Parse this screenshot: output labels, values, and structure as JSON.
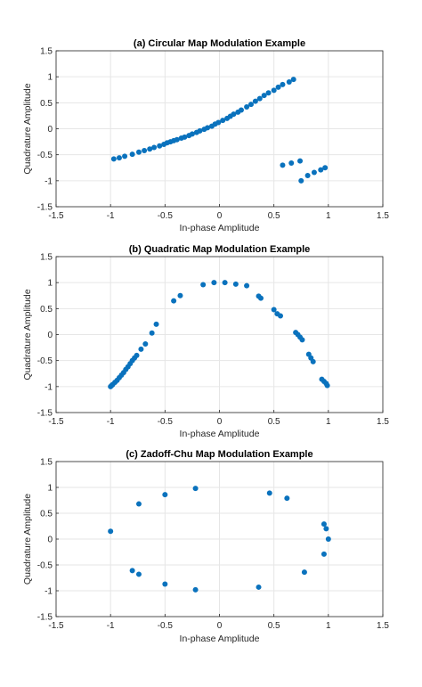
{
  "chart_data": [
    {
      "type": "scatter",
      "title": "(a) Circular Map Modulation Example",
      "xlabel": "In-phase Amplitude",
      "ylabel": "Quadrature Amplitude",
      "xlim": [
        -1.5,
        1.5
      ],
      "ylim": [
        -1.5,
        1.5
      ],
      "xticks": [
        -1.5,
        -1,
        -0.5,
        0,
        0.5,
        1,
        1.5
      ],
      "yticks": [
        -1.5,
        -1,
        -0.5,
        0,
        0.5,
        1,
        1.5
      ],
      "xticklabels": [
        "-1.5",
        "-1",
        "-0.5",
        "0",
        "0.5",
        "1",
        "1.5"
      ],
      "yticklabels": [
        "-1.5",
        "-1",
        "-0.5",
        "0",
        "0.5",
        "1",
        "1.5"
      ],
      "grid": true,
      "color": "#0a72bd",
      "x": [
        -0.97,
        -0.92,
        -0.87,
        -0.8,
        -0.74,
        -0.69,
        -0.64,
        -0.6,
        -0.55,
        -0.51,
        -0.48,
        -0.45,
        -0.42,
        -0.39,
        -0.35,
        -0.32,
        -0.28,
        -0.25,
        -0.21,
        -0.18,
        -0.14,
        -0.11,
        -0.07,
        -0.04,
        -0.01,
        0.03,
        0.07,
        0.1,
        0.13,
        0.17,
        0.2,
        0.25,
        0.29,
        0.33,
        0.37,
        0.41,
        0.45,
        0.5,
        0.54,
        0.58,
        0.64,
        0.68,
        0.75,
        0.81,
        0.87,
        0.93,
        0.97
      ],
      "y": [
        -0.58,
        -0.56,
        -0.53,
        -0.49,
        -0.45,
        -0.42,
        -0.39,
        -0.36,
        -0.33,
        -0.3,
        -0.27,
        -0.25,
        -0.23,
        -0.21,
        -0.18,
        -0.16,
        -0.13,
        -0.1,
        -0.07,
        -0.04,
        -0.01,
        0.02,
        0.05,
        0.09,
        0.12,
        0.16,
        0.2,
        0.24,
        0.28,
        0.32,
        0.36,
        0.42,
        0.47,
        0.53,
        0.58,
        0.64,
        0.69,
        0.74,
        0.8,
        0.85,
        0.9,
        0.95,
        -1.0,
        -0.9,
        -0.84,
        -0.79,
        -0.75
      ],
      "x_extra": [
        0.58,
        0.66,
        0.74
      ],
      "y_extra": [
        -0.7,
        -0.66,
        -0.62
      ]
    },
    {
      "type": "scatter",
      "title": "(b) Quadratic Map Modulation Example",
      "xlabel": "In-phase Amplitude",
      "ylabel": "Quadrature Amplitude",
      "xlim": [
        -1.5,
        1.5
      ],
      "ylim": [
        -1.5,
        1.5
      ],
      "xticks": [
        -1.5,
        -1,
        -0.5,
        0,
        0.5,
        1,
        1.5
      ],
      "yticks": [
        -1.5,
        -1,
        -0.5,
        0,
        0.5,
        1,
        1.5
      ],
      "xticklabels": [
        "-1.5",
        "-1",
        "-0.5",
        "0",
        "0.5",
        "1",
        "1.5"
      ],
      "yticklabels": [
        "-1.5",
        "-1",
        "-0.5",
        "0",
        "0.5",
        "1",
        "1.5"
      ],
      "grid": true,
      "color": "#0a72bd",
      "x": [
        -1.0,
        -0.99,
        -0.98,
        -0.96,
        -0.94,
        -0.92,
        -0.9,
        -0.88,
        -0.86,
        -0.84,
        -0.82,
        -0.8,
        -0.78,
        -0.76,
        -0.72,
        -0.68,
        -0.62,
        -0.58,
        -0.42,
        -0.36,
        -0.15,
        -0.05,
        0.05,
        0.15,
        0.25,
        0.36,
        0.38,
        0.5,
        0.53,
        0.56,
        0.7,
        0.72,
        0.74,
        0.76,
        0.82,
        0.84,
        0.86,
        0.94,
        0.96,
        0.98,
        0.99
      ],
      "y": [
        -1.0,
        -0.98,
        -0.96,
        -0.92,
        -0.88,
        -0.83,
        -0.78,
        -0.73,
        -0.67,
        -0.62,
        -0.56,
        -0.5,
        -0.45,
        -0.4,
        -0.28,
        -0.18,
        0.03,
        0.2,
        0.65,
        0.75,
        0.96,
        1.0,
        1.0,
        0.97,
        0.94,
        0.74,
        0.7,
        0.48,
        0.4,
        0.36,
        0.04,
        0.0,
        -0.05,
        -0.1,
        -0.38,
        -0.45,
        -0.52,
        -0.86,
        -0.9,
        -0.94,
        -0.98
      ]
    },
    {
      "type": "scatter",
      "title": "(c) Zadoff-Chu Map Modulation Example",
      "xlabel": "In-phase Amplitude",
      "ylabel": "Quadrature Amplitude",
      "xlim": [
        -1.5,
        1.5
      ],
      "ylim": [
        -1.5,
        1.5
      ],
      "xticks": [
        -1.5,
        -1,
        -0.5,
        0,
        0.5,
        1,
        1.5
      ],
      "yticks": [
        -1.5,
        -1,
        -0.5,
        0,
        0.5,
        1,
        1.5
      ],
      "xticklabels": [
        "-1.5",
        "-1",
        "-0.5",
        "0",
        "0.5",
        "1",
        "1.5"
      ],
      "yticklabels": [
        "-1.5",
        "-1",
        "-0.5",
        "0",
        "0.5",
        "1",
        "1.5"
      ],
      "grid": true,
      "color": "#0a72bd",
      "x": [
        -1.0,
        -0.74,
        -0.5,
        -0.22,
        0.46,
        0.62,
        0.96,
        0.98,
        1.0,
        0.96,
        0.78,
        0.36,
        -0.22,
        -0.5,
        -0.74,
        -0.8
      ],
      "y": [
        0.15,
        0.68,
        0.86,
        0.98,
        0.89,
        0.79,
        0.29,
        0.2,
        0.0,
        -0.29,
        -0.64,
        -0.93,
        -0.98,
        -0.87,
        -0.68,
        -0.61
      ]
    }
  ]
}
